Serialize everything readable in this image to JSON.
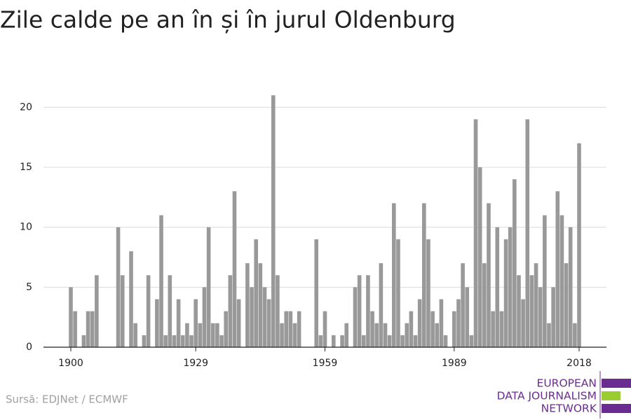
{
  "chart_data": {
    "type": "bar",
    "title": "Zile calde pe an în și în jurul Oldenburg",
    "source": "Sursă: EDJNet / ECMWF",
    "logo": [
      "EUROPEAN",
      "DATA JOURNALISM",
      "NETWORK"
    ],
    "categories": [
      "1900",
      null,
      null,
      null,
      null,
      null,
      null,
      null,
      null,
      null,
      null,
      null,
      null,
      null,
      null,
      null,
      null,
      null,
      null,
      null,
      null,
      null,
      null,
      null,
      null,
      null,
      null,
      null,
      null,
      "1929",
      null,
      null,
      null,
      null,
      null,
      null,
      null,
      null,
      null,
      null,
      null,
      null,
      null,
      null,
      null,
      null,
      null,
      null,
      null,
      null,
      null,
      null,
      null,
      null,
      null,
      null,
      null,
      null,
      null,
      "1959",
      null,
      null,
      null,
      null,
      null,
      null,
      null,
      null,
      null,
      null,
      null,
      null,
      null,
      null,
      null,
      null,
      null,
      null,
      null,
      null,
      null,
      null,
      null,
      null,
      null,
      null,
      null,
      null,
      null,
      "1989",
      null,
      null,
      null,
      null,
      null,
      null,
      null,
      null,
      null,
      null,
      null,
      null,
      null,
      null,
      null,
      null,
      null,
      null,
      null,
      null,
      null,
      null,
      null,
      null,
      null,
      null,
      null,
      null,
      "2018"
    ],
    "values": [
      5,
      3,
      0,
      1,
      3,
      3,
      6,
      0,
      0,
      0,
      0,
      10,
      6,
      0,
      8,
      2,
      0,
      1,
      6,
      0,
      4,
      11,
      1,
      6,
      1,
      4,
      1,
      2,
      1,
      4,
      2,
      5,
      10,
      2,
      2,
      1,
      3,
      6,
      13,
      4,
      0,
      7,
      5,
      9,
      7,
      5,
      4,
      21,
      6,
      2,
      3,
      3,
      2,
      3,
      0,
      0,
      0,
      9,
      1,
      3,
      0,
      1,
      0,
      1,
      2,
      0,
      5,
      6,
      1,
      6,
      3,
      2,
      7,
      2,
      1,
      12,
      9,
      1,
      2,
      3,
      1,
      4,
      12,
      9,
      3,
      2,
      4,
      1,
      0,
      3,
      4,
      7,
      5,
      1,
      19,
      15,
      7,
      12,
      3,
      10,
      3,
      9,
      10,
      14,
      6,
      4,
      19,
      6,
      7,
      5,
      11,
      2,
      5,
      13,
      11,
      7,
      10,
      2,
      17
    ],
    "color": "#999999",
    "ylim": [
      0,
      22
    ],
    "yticks": [
      0,
      5,
      10,
      15,
      20
    ],
    "grid": true
  }
}
